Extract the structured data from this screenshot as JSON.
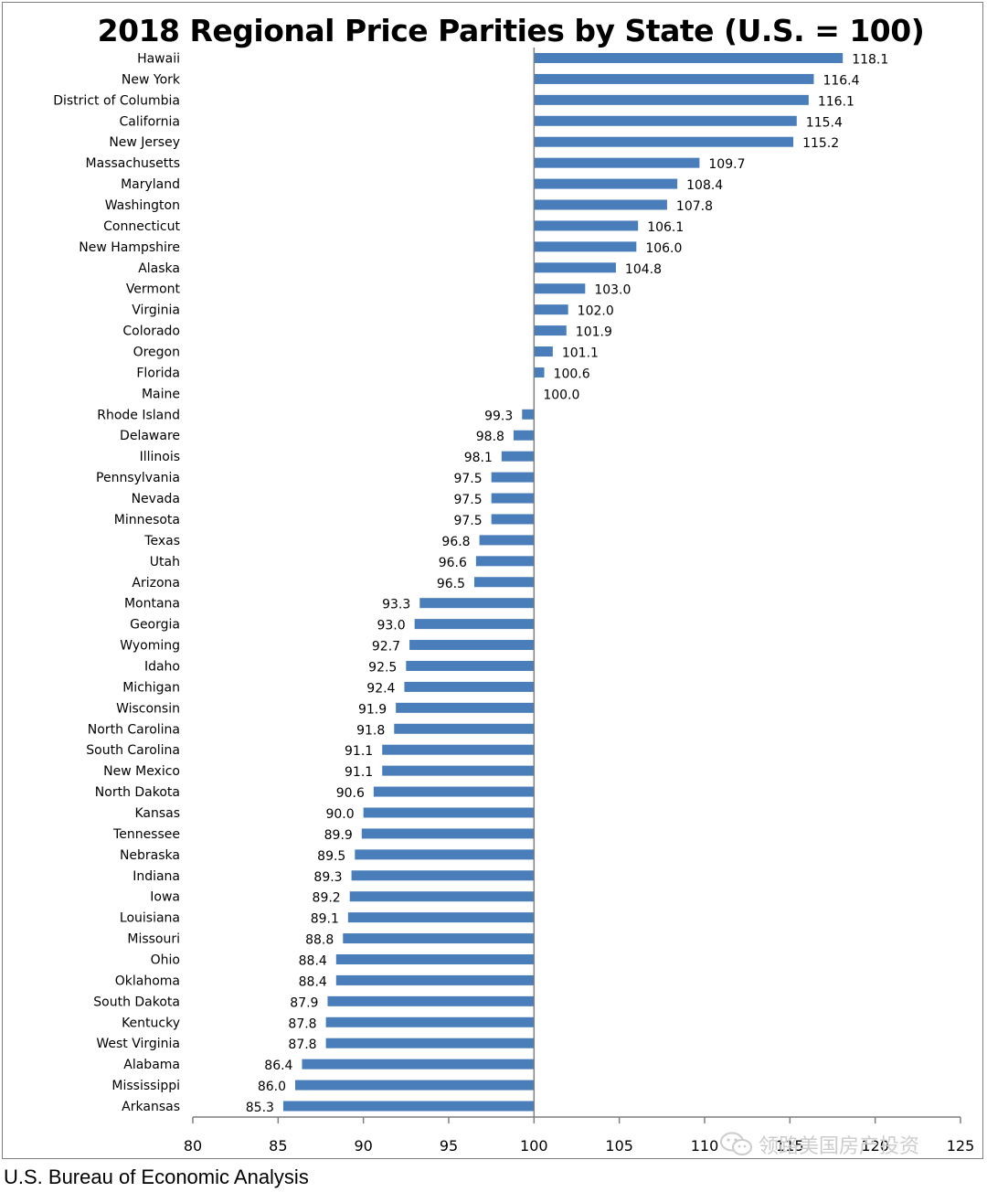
{
  "chart_data": {
    "type": "bar",
    "orientation": "horizontal",
    "title": "2018 Regional Price Parities by State (U.S. = 100)",
    "baseline": 100,
    "xlim": [
      80,
      125
    ],
    "xticks": [
      80,
      85,
      90,
      95,
      100,
      105,
      110,
      115,
      120,
      125
    ],
    "grid": false,
    "bar_color": "#4a7ebb",
    "categories": [
      "Hawaii",
      "New York",
      "District of Columbia",
      "California",
      "New Jersey",
      "Massachusetts",
      "Maryland",
      "Washington",
      "Connecticut",
      "New Hampshire",
      "Alaska",
      "Vermont",
      "Virginia",
      "Colorado",
      "Oregon",
      "Florida",
      "Maine",
      "Rhode Island",
      "Delaware",
      "Illinois",
      "Pennsylvania",
      "Nevada",
      "Minnesota",
      "Texas",
      "Utah",
      "Arizona",
      "Montana",
      "Georgia",
      "Wyoming",
      "Idaho",
      "Michigan",
      "Wisconsin",
      "North Carolina",
      "South Carolina",
      "New Mexico",
      "North Dakota",
      "Kansas",
      "Tennessee",
      "Nebraska",
      "Indiana",
      "Iowa",
      "Louisiana",
      "Missouri",
      "Ohio",
      "Oklahoma",
      "South Dakota",
      "Kentucky",
      "West Virginia",
      "Alabama",
      "Mississippi",
      "Arkansas"
    ],
    "values": [
      118.1,
      116.4,
      116.1,
      115.4,
      115.2,
      109.7,
      108.4,
      107.8,
      106.1,
      106.0,
      104.8,
      103.0,
      102.0,
      101.9,
      101.1,
      100.6,
      100.0,
      99.3,
      98.8,
      98.1,
      97.5,
      97.5,
      97.5,
      96.8,
      96.6,
      96.5,
      93.3,
      93.0,
      92.7,
      92.5,
      92.4,
      91.9,
      91.8,
      91.1,
      91.1,
      90.6,
      90.0,
      89.9,
      89.5,
      89.3,
      89.2,
      89.1,
      88.8,
      88.4,
      88.4,
      87.9,
      87.8,
      87.8,
      86.4,
      86.0,
      85.3
    ]
  },
  "source": "U.S. Bureau of Economic Analysis",
  "watermark": "领路美国房产投资"
}
